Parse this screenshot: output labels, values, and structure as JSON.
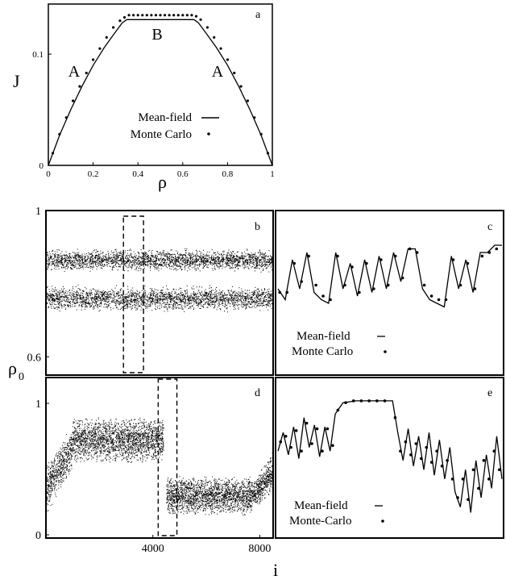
{
  "figure": {
    "ylabel_top": "J",
    "xlabel_top": "ρ",
    "ylabel_bottom": "ρ",
    "ylabel_bottom_sub": "0",
    "xlabel_bottom": "i"
  },
  "chart_data": [
    {
      "panel": "a",
      "type": "line",
      "xlim": [
        0,
        1
      ],
      "ylim": [
        0,
        0.145
      ],
      "xticks": [
        "0",
        "0.2",
        "0.4",
        "0.6",
        "0.8",
        "1"
      ],
      "yticks": [
        "0",
        "0.1"
      ],
      "ytick_values": [
        0,
        0.1
      ],
      "annotations": [
        "A",
        "B",
        "A"
      ],
      "legend": {
        "placement": "bottom-center",
        "entries": [
          "Mean-field",
          "Monte Carlo"
        ]
      },
      "series": [
        {
          "name": "Mean-field",
          "style": "line",
          "x": [
            0,
            0.05,
            0.1,
            0.15,
            0.2,
            0.25,
            0.3,
            0.33,
            0.35,
            0.4,
            0.5,
            0.6,
            0.65,
            0.67,
            0.7,
            0.75,
            0.8,
            0.85,
            0.9,
            0.95,
            1
          ],
          "y": [
            0,
            0.027,
            0.05,
            0.071,
            0.09,
            0.106,
            0.12,
            0.128,
            0.131,
            0.131,
            0.131,
            0.131,
            0.131,
            0.128,
            0.12,
            0.106,
            0.09,
            0.071,
            0.05,
            0.027,
            0
          ]
        },
        {
          "name": "Monte Carlo",
          "style": "dots",
          "x": [
            0.02,
            0.05,
            0.08,
            0.11,
            0.14,
            0.17,
            0.2,
            0.23,
            0.26,
            0.29,
            0.32,
            0.34,
            0.36,
            0.38,
            0.4,
            0.42,
            0.44,
            0.46,
            0.48,
            0.5,
            0.52,
            0.54,
            0.56,
            0.58,
            0.6,
            0.62,
            0.64,
            0.66,
            0.68,
            0.71,
            0.74,
            0.77,
            0.8,
            0.83,
            0.86,
            0.89,
            0.92,
            0.95,
            0.98
          ],
          "y": [
            0.011,
            0.028,
            0.043,
            0.058,
            0.071,
            0.083,
            0.095,
            0.105,
            0.115,
            0.124,
            0.13,
            0.133,
            0.135,
            0.135,
            0.135,
            0.135,
            0.135,
            0.135,
            0.135,
            0.135,
            0.135,
            0.135,
            0.135,
            0.135,
            0.135,
            0.135,
            0.135,
            0.134,
            0.131,
            0.124,
            0.115,
            0.105,
            0.095,
            0.083,
            0.071,
            0.058,
            0.043,
            0.028,
            0.011
          ]
        }
      ]
    },
    {
      "panel": "b",
      "type": "scatter",
      "ylim": [
        0.55,
        1.0
      ],
      "yticks": [
        "1",
        "0.6"
      ],
      "ytick_values": [
        1.0,
        0.6
      ],
      "xlim": [
        0,
        8500
      ],
      "description_bands": [
        {
          "y_from": 0.83,
          "y_to": 0.9
        },
        {
          "y_from": 0.72,
          "y_to": 0.8
        }
      ],
      "highlight_window": {
        "x_from": 2900,
        "x_to": 3650
      }
    },
    {
      "panel": "c",
      "type": "line",
      "legend": {
        "placement": "bottom-left",
        "entries": [
          "Mean-field",
          "Monte Carlo"
        ]
      },
      "series": [
        {
          "name": "Mean-field",
          "style": "line",
          "x": [
            0,
            4,
            8,
            12,
            16,
            20,
            24,
            28,
            32,
            36,
            40,
            44,
            48,
            52,
            56,
            60,
            64,
            68,
            72,
            76,
            80,
            84,
            88,
            92,
            96,
            100,
            104,
            108,
            112,
            116,
            120,
            124
          ],
          "y": [
            0.78,
            0.75,
            0.86,
            0.78,
            0.88,
            0.77,
            0.75,
            0.74,
            0.88,
            0.78,
            0.85,
            0.76,
            0.86,
            0.77,
            0.87,
            0.78,
            0.88,
            0.8,
            0.89,
            0.89,
            0.78,
            0.75,
            0.74,
            0.73,
            0.87,
            0.78,
            0.86,
            0.77,
            0.88,
            0.88,
            0.9,
            0.9
          ]
        },
        {
          "name": "Monte Carlo",
          "style": "dots",
          "x": [
            1,
            5,
            9,
            13,
            17,
            21,
            25,
            29,
            33,
            37,
            41,
            45,
            49,
            53,
            57,
            61,
            65,
            69,
            73,
            77,
            81,
            85,
            89,
            93,
            97,
            101,
            105,
            109,
            113,
            117,
            121
          ],
          "y": [
            0.77,
            0.77,
            0.85,
            0.8,
            0.87,
            0.79,
            0.76,
            0.75,
            0.87,
            0.79,
            0.84,
            0.77,
            0.85,
            0.78,
            0.86,
            0.79,
            0.87,
            0.81,
            0.89,
            0.88,
            0.79,
            0.76,
            0.75,
            0.75,
            0.86,
            0.79,
            0.85,
            0.78,
            0.87,
            0.88,
            0.89
          ]
        }
      ]
    },
    {
      "panel": "d",
      "type": "scatter",
      "xlim": [
        0,
        8500
      ],
      "ylim": [
        0,
        1.0
      ],
      "xticks": [
        "4000",
        "8000"
      ],
      "xtick_values": [
        4000,
        8000
      ],
      "yticks": [
        "1",
        "0"
      ],
      "ytick_values": [
        1,
        0
      ],
      "description_segments": [
        {
          "x_from": 0,
          "x_to": 1000,
          "y_from": 0.3,
          "y_to": 0.75
        },
        {
          "x_from": 1000,
          "x_to": 4400,
          "y_from": 0.55,
          "y_to": 0.9
        },
        {
          "x_from": 4500,
          "x_to": 7700,
          "y_from": 0.15,
          "y_to": 0.45
        },
        {
          "x_from": 7700,
          "x_to": 8500,
          "y_from": 0.2,
          "y_to": 0.65
        }
      ],
      "highlight_window": {
        "x_from": 4200,
        "x_to": 4900
      }
    },
    {
      "panel": "e",
      "type": "line",
      "legend": {
        "placement": "bottom-left",
        "entries": [
          "Mean-field",
          "Monte-Carlo"
        ]
      },
      "series": [
        {
          "name": "Mean-field",
          "style": "line",
          "x": [
            0,
            4,
            8,
            12,
            16,
            20,
            24,
            28,
            32,
            36,
            40,
            44,
            50,
            60,
            70,
            80,
            88,
            92,
            96,
            100,
            104,
            108,
            112,
            116,
            120,
            124,
            128,
            132,
            136,
            140,
            144,
            148,
            152,
            156,
            160,
            164,
            168,
            172
          ],
          "y": [
            0.6,
            0.7,
            0.58,
            0.73,
            0.56,
            0.78,
            0.62,
            0.74,
            0.57,
            0.73,
            0.6,
            0.8,
            0.86,
            0.87,
            0.87,
            0.87,
            0.87,
            0.7,
            0.55,
            0.72,
            0.52,
            0.68,
            0.5,
            0.7,
            0.47,
            0.66,
            0.45,
            0.62,
            0.38,
            0.3,
            0.5,
            0.27,
            0.55,
            0.35,
            0.58,
            0.4,
            0.68,
            0.45
          ]
        },
        {
          "name": "Monte-Carlo",
          "style": "dots",
          "x": [
            2,
            6,
            10,
            14,
            18,
            22,
            26,
            30,
            34,
            38,
            42,
            46,
            52,
            58,
            64,
            70,
            76,
            82,
            90,
            94,
            98,
            102,
            106,
            110,
            114,
            118,
            122,
            126,
            130,
            134,
            138,
            142,
            146,
            150,
            154,
            158,
            162,
            166,
            170
          ],
          "y": [
            0.65,
            0.68,
            0.62,
            0.71,
            0.6,
            0.75,
            0.64,
            0.72,
            0.6,
            0.72,
            0.63,
            0.82,
            0.86,
            0.87,
            0.87,
            0.87,
            0.87,
            0.87,
            0.78,
            0.6,
            0.65,
            0.58,
            0.64,
            0.56,
            0.62,
            0.54,
            0.6,
            0.52,
            0.55,
            0.45,
            0.35,
            0.45,
            0.34,
            0.5,
            0.4,
            0.55,
            0.45,
            0.6,
            0.5
          ]
        }
      ]
    }
  ]
}
